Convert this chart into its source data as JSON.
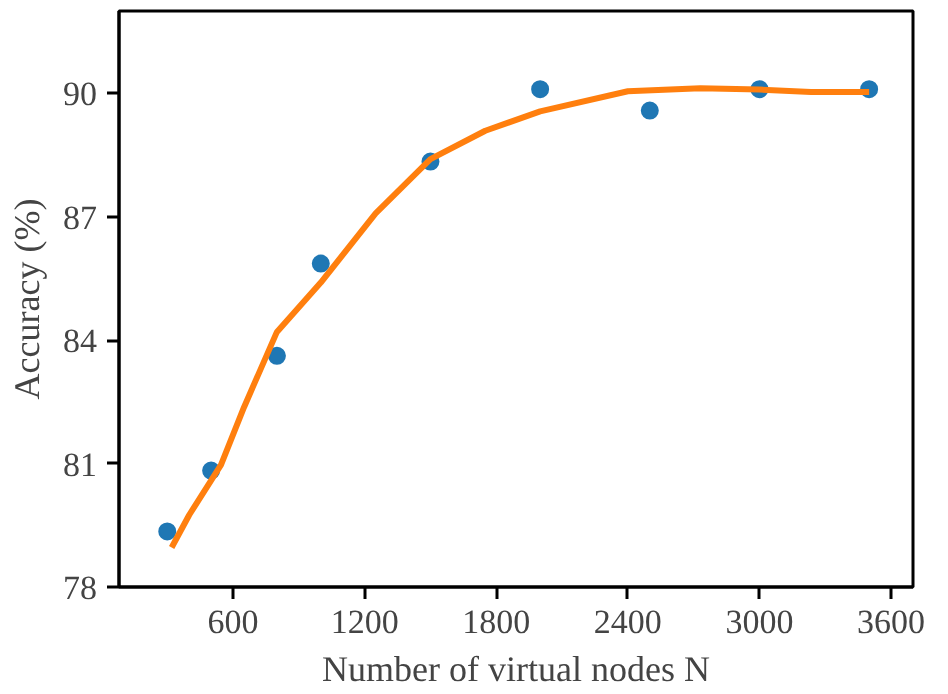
{
  "chart_data": {
    "type": "scatter",
    "xlabel": "Number of virtual nodes N",
    "ylabel": "Accuracy (%)",
    "xlim": [
      80,
      3700
    ],
    "ylim": [
      78,
      92
    ],
    "xticks": [
      600,
      1200,
      1800,
      2400,
      3000,
      3600
    ],
    "yticks": [
      78,
      81,
      84,
      87,
      90
    ],
    "grid": false,
    "series": [
      {
        "marker": "circle",
        "color": "#1f77b4",
        "x": [
          300,
          500,
          800,
          1000,
          1500,
          2000,
          2500,
          3000,
          3500
        ],
        "values": [
          79.35,
          80.83,
          83.62,
          85.86,
          88.34,
          90.1,
          89.58,
          90.1,
          90.1
        ]
      },
      {
        "type": "line",
        "color": "#ff7f0e",
        "line_style": "solid",
        "x": [
          320,
          400,
          545,
          650,
          800,
          1000,
          1250,
          1500,
          1750,
          2000,
          2400,
          2730,
          3000,
          3235,
          3500
        ],
        "values": [
          78.96,
          79.75,
          80.97,
          82.37,
          84.2,
          85.4,
          87.08,
          88.4,
          89.09,
          89.56,
          90.05,
          90.12,
          90.09,
          90.03,
          90.03
        ]
      }
    ]
  }
}
